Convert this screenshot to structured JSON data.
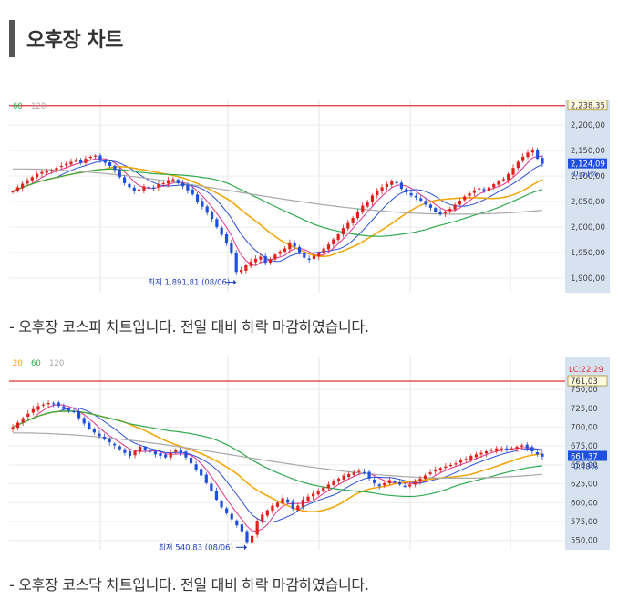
{
  "page": {
    "title": "오후장 차트",
    "caption1": "-  오후장 코스피 차트입니다. 전일 대비 하락 마감하였습니다.",
    "caption2": " - 오후장 코스닥 차트입니다. 전일 대비 하락 마감하였습니다."
  },
  "colors": {
    "ma5": "#e0318a",
    "ma20": "#2a50d8",
    "ma60": "#f2a400",
    "ma120": "#2eaa4e",
    "ma240": "#a8a8a8",
    "up": "#e0201c",
    "down": "#1f4fe0",
    "limit": "#e23030",
    "axis_bg": "#d6e2f0"
  },
  "chart_data": [
    {
      "type": "candlestick",
      "name": "kospi",
      "legend": [
        "60",
        "120"
      ],
      "ylim": [
        1875,
        2245
      ],
      "yticks": [
        {
          "v": 2200,
          "label": "2,200,00"
        },
        {
          "v": 2150,
          "label": "2,150,00"
        },
        {
          "v": 2100,
          "label": "2,100,00"
        },
        {
          "v": 2050,
          "label": "2,050,00"
        },
        {
          "v": 2000,
          "label": "2,000,00"
        },
        {
          "v": 1950,
          "label": "1,950,00"
        },
        {
          "v": 1900,
          "label": "1,900,00"
        }
      ],
      "limit_line": {
        "v": 2238.35,
        "label": "2,238,35"
      },
      "current": {
        "v": 2124.09,
        "label": "2,124,09",
        "change": "-0.61%"
      },
      "low_annotation": {
        "text": "최저 1,891,81 (08/06)",
        "index": 46,
        "v": 1891.81
      },
      "close": [
        2070,
        2078,
        2085,
        2092,
        2098,
        2104,
        2108,
        2110,
        2112,
        2116,
        2120,
        2124,
        2128,
        2130,
        2126,
        2134,
        2138,
        2140,
        2132,
        2126,
        2120,
        2112,
        2098,
        2086,
        2078,
        2070,
        2074,
        2080,
        2078,
        2076,
        2084,
        2086,
        2092,
        2094,
        2086,
        2080,
        2072,
        2064,
        2050,
        2040,
        2028,
        2016,
        2000,
        1985,
        1968,
        1950,
        1912,
        1916,
        1925,
        1932,
        1938,
        1942,
        1930,
        1937,
        1946,
        1952,
        1958,
        1970,
        1962,
        1950,
        1940,
        1936,
        1944,
        1950,
        1958,
        1966,
        1976,
        1986,
        1998,
        2008,
        2018,
        2030,
        2042,
        2050,
        2062,
        2072,
        2078,
        2084,
        2090,
        2086,
        2075,
        2068,
        2062,
        2058,
        2052,
        2044,
        2038,
        2030,
        2025,
        2030,
        2036,
        2044,
        2052,
        2060,
        2066,
        2072,
        2076,
        2072,
        2078,
        2084,
        2090,
        2094,
        2104,
        2116,
        2128,
        2138,
        2146,
        2150,
        2134,
        2124
      ]
    },
    {
      "type": "candlestick",
      "name": "kosdaq",
      "legend": [
        "20",
        "60",
        "120"
      ],
      "ylim": [
        540,
        790
      ],
      "yticks": [
        {
          "v": 750,
          "label": "750,00"
        },
        {
          "v": 725,
          "label": "725,00"
        },
        {
          "v": 700,
          "label": "700,00"
        },
        {
          "v": 675,
          "label": "675,00"
        },
        {
          "v": 650,
          "label": "650,00"
        },
        {
          "v": 625,
          "label": "625,00"
        },
        {
          "v": 600,
          "label": "600,00"
        },
        {
          "v": 575,
          "label": "575,00"
        },
        {
          "v": 550,
          "label": "550,00"
        }
      ],
      "limit_line": {
        "v": 761.03,
        "label": "761,03",
        "lc": "LC:22,29"
      },
      "current": {
        "v": 661.37,
        "label": "661,37",
        "change": "-0.49%"
      },
      "low_annotation": {
        "text": "최저 540,83 (08/06)",
        "index": 46,
        "v": 540.83
      },
      "close": [
        700,
        706,
        712,
        718,
        724,
        728,
        730,
        732,
        731,
        728,
        724,
        722,
        720,
        712,
        705,
        698,
        693,
        688,
        684,
        680,
        676,
        671,
        666,
        662,
        668,
        674,
        670,
        668,
        664,
        662,
        660,
        666,
        670,
        666,
        660,
        652,
        644,
        636,
        626,
        616,
        604,
        594,
        586,
        578,
        570,
        562,
        548,
        556,
        576,
        584,
        590,
        596,
        600,
        606,
        600,
        592,
        596,
        604,
        608,
        612,
        616,
        620,
        624,
        628,
        632,
        636,
        638,
        640,
        642,
        640,
        632,
        626,
        622,
        626,
        630,
        628,
        624,
        622,
        624,
        628,
        632,
        636,
        640,
        644,
        646,
        648,
        650,
        652,
        656,
        658,
        662,
        664,
        666,
        668,
        670,
        672,
        672,
        670,
        672,
        674,
        676,
        672,
        668,
        664,
        661
      ]
    }
  ]
}
